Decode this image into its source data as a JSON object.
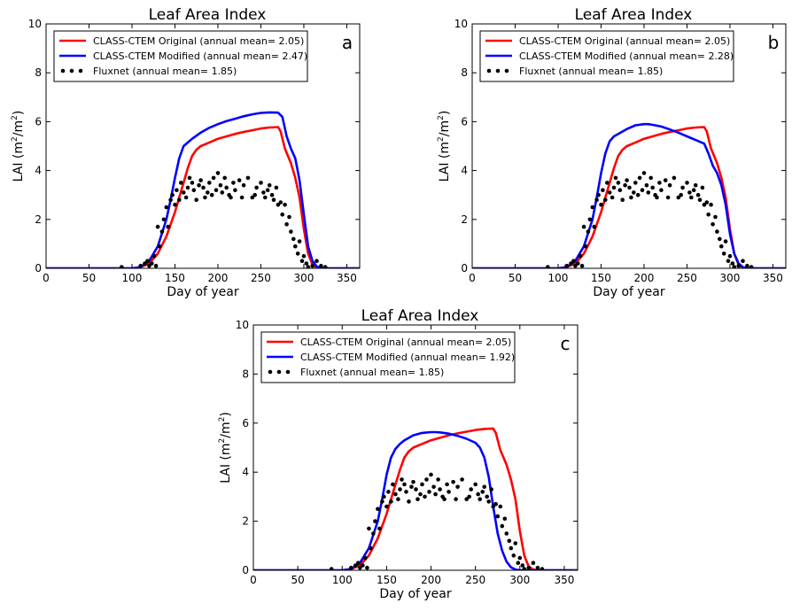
{
  "chart_data": [
    {
      "type": "line",
      "panel_letter": "a",
      "title": "Leaf Area Index",
      "xlabel": "Day of year",
      "ylabel": "LAI (m²/m²)",
      "xlim": [
        0,
        365
      ],
      "ylim": [
        0,
        10
      ],
      "xticks": [
        0,
        50,
        100,
        150,
        200,
        250,
        300,
        350
      ],
      "yticks": [
        0,
        2,
        4,
        6,
        8,
        10
      ],
      "legend_position": "top-left",
      "series": [
        {
          "name": "CLASS-CTEM Original (annual mean= 2.05)",
          "color": "#ff0000",
          "style": "line",
          "x": [
            0,
            100,
            110,
            120,
            130,
            140,
            150,
            160,
            165,
            170,
            175,
            180,
            190,
            200,
            210,
            220,
            230,
            240,
            250,
            260,
            270,
            273,
            278,
            285,
            290,
            295,
            300,
            305,
            310,
            315,
            320,
            365
          ],
          "y": [
            0,
            0,
            0.05,
            0.2,
            0.6,
            1.3,
            2.3,
            3.5,
            4.1,
            4.6,
            4.85,
            5.0,
            5.15,
            5.3,
            5.4,
            5.5,
            5.58,
            5.65,
            5.72,
            5.76,
            5.78,
            5.6,
            4.9,
            4.3,
            3.7,
            2.9,
            1.6,
            0.6,
            0.15,
            0.03,
            0,
            0
          ]
        },
        {
          "name": "CLASS-CTEM Modified (annual mean= 2.47)",
          "color": "#0000ff",
          "style": "line",
          "x": [
            0,
            100,
            110,
            120,
            130,
            140,
            145,
            150,
            155,
            160,
            165,
            170,
            180,
            190,
            200,
            210,
            220,
            230,
            240,
            250,
            260,
            270,
            275,
            280,
            285,
            290,
            295,
            300,
            305,
            310,
            315,
            320,
            365
          ],
          "y": [
            0,
            0,
            0.05,
            0.3,
            0.9,
            2.0,
            2.8,
            3.7,
            4.5,
            5.0,
            5.15,
            5.3,
            5.55,
            5.75,
            5.9,
            6.02,
            6.12,
            6.22,
            6.3,
            6.36,
            6.38,
            6.37,
            6.2,
            5.4,
            4.9,
            4.5,
            3.6,
            2.2,
            0.9,
            0.3,
            0.08,
            0,
            0
          ]
        },
        {
          "name": "Fluxnet (annual mean= 1.85)",
          "color": "#000000",
          "style": "points",
          "x": [
            88,
            110,
            115,
            118,
            120,
            123,
            126,
            128,
            130,
            132,
            135,
            137,
            140,
            142,
            145,
            147,
            150,
            152,
            155,
            157,
            160,
            163,
            165,
            167,
            170,
            172,
            175,
            178,
            180,
            183,
            185,
            188,
            190,
            193,
            195,
            198,
            200,
            203,
            205,
            208,
            210,
            213,
            215,
            218,
            220,
            225,
            228,
            230,
            235,
            240,
            243,
            245,
            250,
            253,
            255,
            258,
            260,
            263,
            265,
            268,
            270,
            273,
            275,
            278,
            280,
            283,
            285,
            288,
            290,
            293,
            295,
            298,
            300,
            303,
            305,
            310,
            315,
            320,
            325
          ],
          "y": [
            0.05,
            0.1,
            0.2,
            0.3,
            0.1,
            0.2,
            0.5,
            0.1,
            1.7,
            0.9,
            1.5,
            2.0,
            2.5,
            1.7,
            2.8,
            3.0,
            2.6,
            3.2,
            2.8,
            3.5,
            3.1,
            2.9,
            3.3,
            3.7,
            3.5,
            3.2,
            2.8,
            3.4,
            3.6,
            3.3,
            2.9,
            3.1,
            3.5,
            3.0,
            3.7,
            3.2,
            3.9,
            3.4,
            3.1,
            3.7,
            3.3,
            3.0,
            2.9,
            3.5,
            3.2,
            3.6,
            2.9,
            3.4,
            3.7,
            2.9,
            3.0,
            3.3,
            3.5,
            3.1,
            2.9,
            3.2,
            3.4,
            3.0,
            2.8,
            3.3,
            2.6,
            2.7,
            2.2,
            2.6,
            1.8,
            2.1,
            1.5,
            1.2,
            0.9,
            0.6,
            1.1,
            0.3,
            0.5,
            0.2,
            0.05,
            0.1,
            0.3,
            0.1,
            0.05
          ]
        }
      ]
    },
    {
      "type": "line",
      "panel_letter": "b",
      "title": "Leaf Area Index",
      "xlabel": "Day of year",
      "ylabel": "LAI (m²/m²)",
      "xlim": [
        0,
        365
      ],
      "ylim": [
        0,
        10
      ],
      "xticks": [
        0,
        50,
        100,
        150,
        200,
        250,
        300,
        350
      ],
      "yticks": [
        0,
        2,
        4,
        6,
        8,
        10
      ],
      "legend_position": "top-left",
      "series": [
        {
          "name": "CLASS-CTEM Original (annual mean= 2.05)",
          "color": "#ff0000",
          "style": "line",
          "x": [
            0,
            100,
            110,
            120,
            130,
            140,
            150,
            160,
            165,
            170,
            175,
            180,
            190,
            200,
            210,
            220,
            230,
            240,
            250,
            260,
            270,
            273,
            278,
            285,
            290,
            295,
            300,
            305,
            310,
            315,
            320,
            365
          ],
          "y": [
            0,
            0,
            0.05,
            0.2,
            0.6,
            1.3,
            2.3,
            3.5,
            4.1,
            4.6,
            4.85,
            5.0,
            5.15,
            5.3,
            5.4,
            5.5,
            5.58,
            5.65,
            5.72,
            5.76,
            5.78,
            5.6,
            4.9,
            4.3,
            3.7,
            2.9,
            1.6,
            0.6,
            0.15,
            0.03,
            0,
            0
          ]
        },
        {
          "name": "CLASS-CTEM Modified (annual mean= 2.28)",
          "color": "#0000ff",
          "style": "line",
          "x": [
            0,
            100,
            110,
            120,
            130,
            140,
            145,
            150,
            155,
            160,
            165,
            170,
            180,
            190,
            200,
            205,
            210,
            220,
            230,
            240,
            250,
            260,
            270,
            275,
            280,
            285,
            290,
            295,
            300,
            305,
            310,
            315,
            320,
            365
          ],
          "y": [
            0,
            0,
            0.05,
            0.3,
            0.9,
            2.0,
            2.9,
            3.9,
            4.7,
            5.2,
            5.4,
            5.5,
            5.7,
            5.85,
            5.9,
            5.9,
            5.87,
            5.8,
            5.68,
            5.55,
            5.4,
            5.25,
            5.1,
            4.7,
            4.2,
            3.9,
            3.4,
            2.6,
            1.4,
            0.6,
            0.2,
            0.05,
            0,
            0
          ]
        },
        {
          "name": "Fluxnet (annual mean= 1.85)",
          "color": "#000000",
          "style": "points",
          "x": [
            88,
            110,
            115,
            118,
            120,
            123,
            126,
            128,
            130,
            132,
            135,
            137,
            140,
            142,
            145,
            147,
            150,
            152,
            155,
            157,
            160,
            163,
            165,
            167,
            170,
            172,
            175,
            178,
            180,
            183,
            185,
            188,
            190,
            193,
            195,
            198,
            200,
            203,
            205,
            208,
            210,
            213,
            215,
            218,
            220,
            225,
            228,
            230,
            235,
            240,
            243,
            245,
            250,
            253,
            255,
            258,
            260,
            263,
            265,
            268,
            270,
            273,
            275,
            278,
            280,
            283,
            285,
            288,
            290,
            293,
            295,
            298,
            300,
            303,
            305,
            310,
            315,
            320,
            325
          ],
          "y": [
            0.05,
            0.1,
            0.2,
            0.3,
            0.1,
            0.2,
            0.5,
            0.1,
            1.7,
            0.9,
            1.5,
            2.0,
            2.5,
            1.7,
            2.8,
            3.0,
            2.6,
            3.2,
            2.8,
            3.5,
            3.1,
            2.9,
            3.3,
            3.7,
            3.5,
            3.2,
            2.8,
            3.4,
            3.6,
            3.3,
            2.9,
            3.1,
            3.5,
            3.0,
            3.7,
            3.2,
            3.9,
            3.4,
            3.1,
            3.7,
            3.3,
            3.0,
            2.9,
            3.5,
            3.2,
            3.6,
            2.9,
            3.4,
            3.7,
            2.9,
            3.0,
            3.3,
            3.5,
            3.1,
            2.9,
            3.2,
            3.4,
            3.0,
            2.8,
            3.3,
            2.6,
            2.7,
            2.2,
            2.6,
            1.8,
            2.1,
            1.5,
            1.2,
            0.9,
            0.6,
            1.1,
            0.3,
            0.5,
            0.2,
            0.05,
            0.1,
            0.3,
            0.1,
            0.05
          ]
        }
      ]
    },
    {
      "type": "line",
      "panel_letter": "c",
      "title": "Leaf Area Index",
      "xlabel": "Day of year",
      "ylabel": "LAI (m²/m²)",
      "xlim": [
        0,
        365
      ],
      "ylim": [
        0,
        10
      ],
      "xticks": [
        0,
        50,
        100,
        150,
        200,
        250,
        300,
        350
      ],
      "yticks": [
        0,
        2,
        4,
        6,
        8,
        10
      ],
      "legend_position": "top-left",
      "series": [
        {
          "name": "CLASS-CTEM Original (annual mean= 2.05)",
          "color": "#ff0000",
          "style": "line",
          "x": [
            0,
            100,
            110,
            120,
            130,
            140,
            150,
            160,
            165,
            170,
            175,
            180,
            190,
            200,
            210,
            220,
            230,
            240,
            250,
            260,
            270,
            273,
            278,
            285,
            290,
            295,
            300,
            305,
            310,
            315,
            320,
            365
          ],
          "y": [
            0,
            0,
            0.05,
            0.2,
            0.6,
            1.3,
            2.3,
            3.5,
            4.1,
            4.6,
            4.85,
            5.0,
            5.15,
            5.3,
            5.4,
            5.5,
            5.58,
            5.65,
            5.72,
            5.76,
            5.78,
            5.6,
            4.9,
            4.3,
            3.7,
            2.9,
            1.6,
            0.6,
            0.15,
            0.03,
            0,
            0
          ]
        },
        {
          "name": "CLASS-CTEM Modified (annual mean= 1.92)",
          "color": "#0000ff",
          "style": "line",
          "x": [
            0,
            100,
            110,
            120,
            130,
            140,
            145,
            150,
            155,
            160,
            165,
            170,
            180,
            190,
            200,
            205,
            210,
            220,
            230,
            240,
            250,
            255,
            260,
            265,
            270,
            275,
            280,
            285,
            290,
            295,
            300,
            365
          ],
          "y": [
            0,
            0,
            0.05,
            0.3,
            0.9,
            2.0,
            2.9,
            3.9,
            4.6,
            4.95,
            5.15,
            5.3,
            5.5,
            5.6,
            5.63,
            5.63,
            5.62,
            5.57,
            5.48,
            5.36,
            5.2,
            5.0,
            4.6,
            3.8,
            2.6,
            1.5,
            0.8,
            0.35,
            0.12,
            0.03,
            0,
            0
          ]
        },
        {
          "name": "Fluxnet (annual mean= 1.85)",
          "color": "#000000",
          "style": "points",
          "x": [
            88,
            110,
            115,
            118,
            120,
            123,
            126,
            128,
            130,
            132,
            135,
            137,
            140,
            142,
            145,
            147,
            150,
            152,
            155,
            157,
            160,
            163,
            165,
            167,
            170,
            172,
            175,
            178,
            180,
            183,
            185,
            188,
            190,
            193,
            195,
            198,
            200,
            203,
            205,
            208,
            210,
            213,
            215,
            218,
            220,
            225,
            228,
            230,
            235,
            240,
            243,
            245,
            250,
            253,
            255,
            258,
            260,
            263,
            265,
            268,
            270,
            273,
            275,
            278,
            280,
            283,
            285,
            288,
            290,
            293,
            295,
            298,
            300,
            303,
            305,
            310,
            315,
            320,
            325
          ],
          "y": [
            0.05,
            0.1,
            0.2,
            0.3,
            0.1,
            0.2,
            0.5,
            0.1,
            1.7,
            0.9,
            1.5,
            2.0,
            2.5,
            1.7,
            2.8,
            3.0,
            2.6,
            3.2,
            2.8,
            3.5,
            3.1,
            2.9,
            3.3,
            3.7,
            3.5,
            3.2,
            2.8,
            3.4,
            3.6,
            3.3,
            2.9,
            3.1,
            3.5,
            3.0,
            3.7,
            3.2,
            3.9,
            3.4,
            3.1,
            3.7,
            3.3,
            3.0,
            2.9,
            3.5,
            3.2,
            3.6,
            2.9,
            3.4,
            3.7,
            2.9,
            3.0,
            3.3,
            3.5,
            3.1,
            2.9,
            3.2,
            3.4,
            3.0,
            2.8,
            3.3,
            2.6,
            2.7,
            2.2,
            2.6,
            1.8,
            2.1,
            1.5,
            1.2,
            0.9,
            0.6,
            1.1,
            0.3,
            0.5,
            0.2,
            0.05,
            0.1,
            0.3,
            0.1,
            0.05
          ]
        }
      ]
    }
  ]
}
